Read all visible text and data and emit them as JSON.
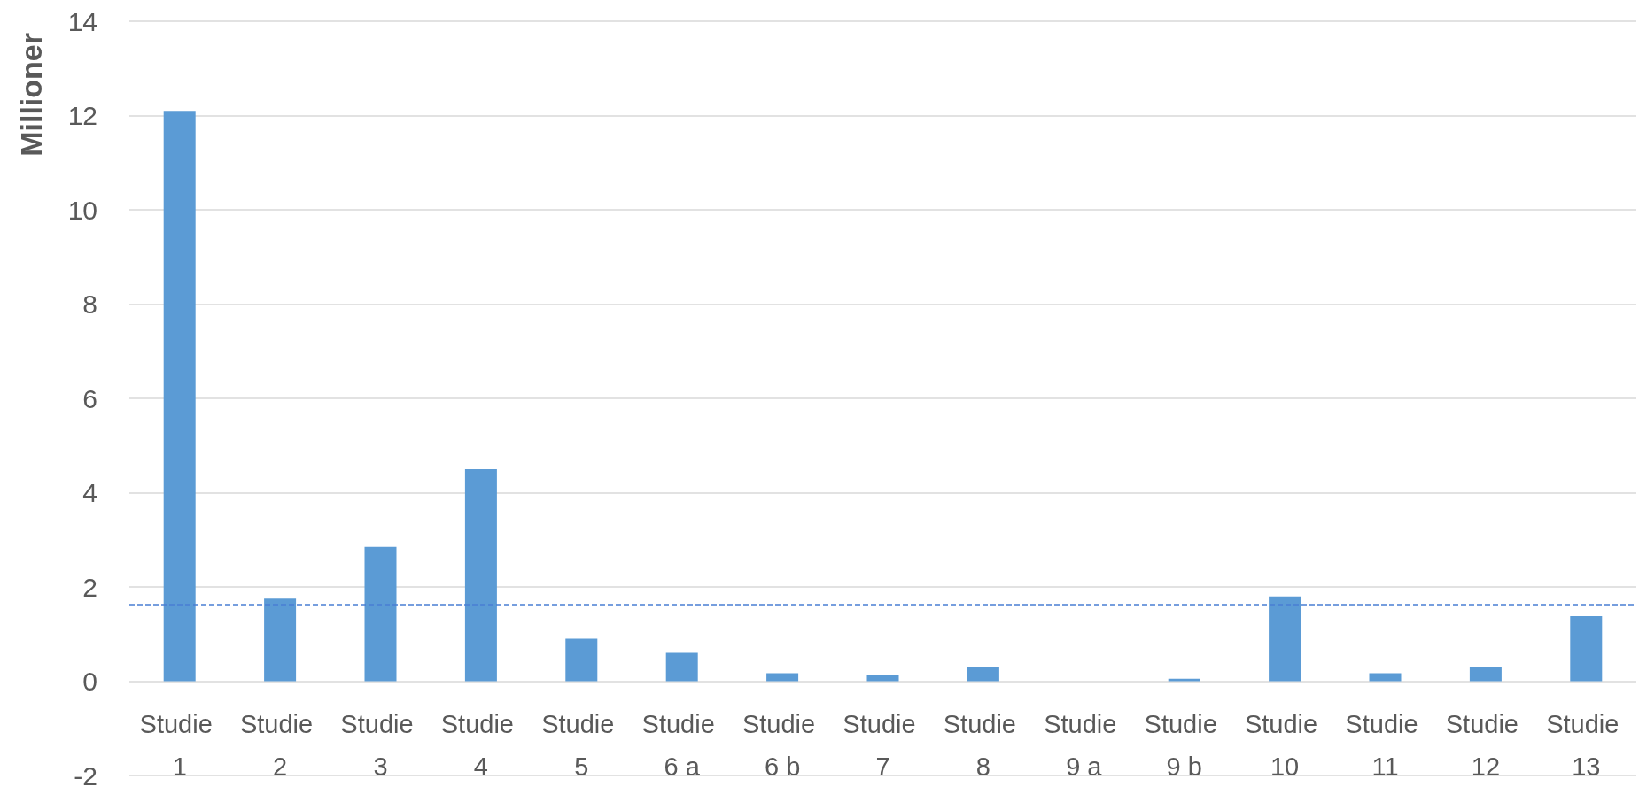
{
  "chart_data": {
    "type": "bar",
    "ylabel": "Millioner",
    "categories": [
      "Studie 1",
      "Studie 2",
      "Studie 3",
      "Studie 4",
      "Studie 5",
      "Studie 6 a",
      "Studie 6 b",
      "Studie 7",
      "Studie 8",
      "Studie 9 a",
      "Studie 9 b",
      "Studie 10",
      "Studie 11",
      "Studie 12",
      "Studie 13"
    ],
    "values": [
      12.1,
      1.75,
      2.85,
      4.5,
      0.9,
      0.6,
      0.17,
      0.12,
      0.3,
      0,
      0.05,
      1.8,
      0.17,
      0.3,
      1.38
    ],
    "color": "#5b9bd5",
    "ylim": [
      -2,
      14
    ],
    "yticks": [
      -2,
      0,
      2,
      4,
      6,
      8,
      10,
      12,
      14
    ],
    "grid": "y",
    "ref_lines": [
      {
        "axis": "y",
        "value": 1.62,
        "color": "#4a7fd4",
        "line_style": "dashed"
      }
    ]
  }
}
